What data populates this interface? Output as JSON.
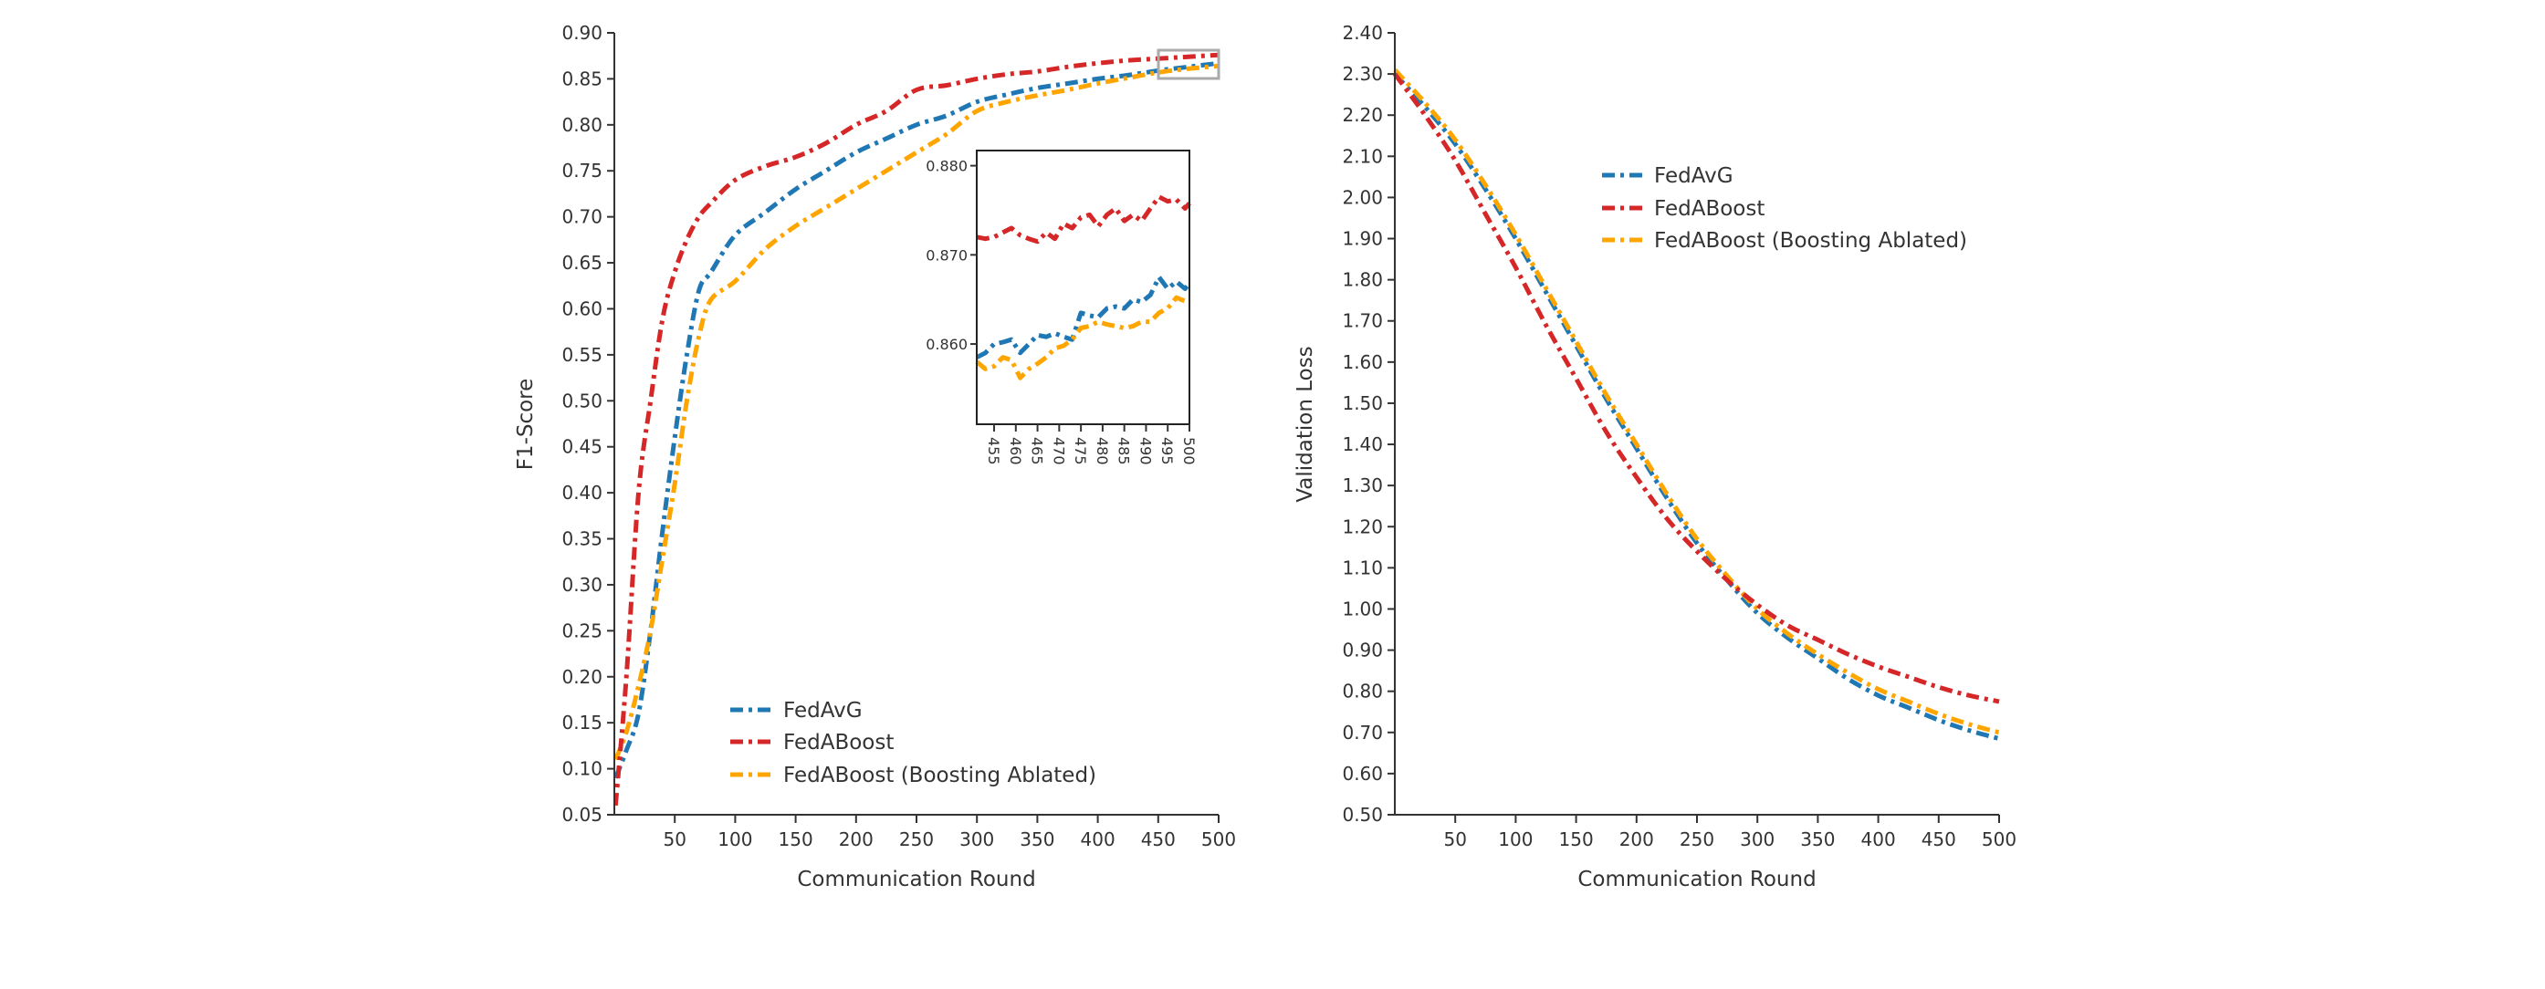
{
  "chart_data": [
    {
      "type": "line",
      "title": "",
      "xlabel": "Communication Round",
      "ylabel": "F1-Score",
      "xlim": [
        0,
        500
      ],
      "ylim": [
        0.05,
        0.9
      ],
      "x_ticks": [
        50,
        100,
        150,
        200,
        250,
        300,
        350,
        400,
        450,
        500
      ],
      "y_ticks": [
        "0.05",
        "0.10",
        "0.15",
        "0.20",
        "0.25",
        "0.30",
        "0.35",
        "0.40",
        "0.45",
        "0.50",
        "0.55",
        "0.60",
        "0.65",
        "0.70",
        "0.75",
        "0.80",
        "0.85",
        "0.90"
      ],
      "grid": false,
      "legend_position": "lower-center",
      "x": [
        1,
        10,
        20,
        30,
        40,
        50,
        60,
        70,
        80,
        100,
        125,
        150,
        175,
        200,
        225,
        250,
        275,
        300,
        325,
        350,
        375,
        400,
        425,
        450,
        475,
        500
      ],
      "series": [
        {
          "name": "FedAvG",
          "color": "#1f77b4",
          "values": [
            0.09,
            0.12,
            0.16,
            0.25,
            0.36,
            0.46,
            0.55,
            0.62,
            0.64,
            0.68,
            0.705,
            0.73,
            0.75,
            0.77,
            0.785,
            0.8,
            0.81,
            0.825,
            0.833,
            0.84,
            0.845,
            0.85,
            0.854,
            0.859,
            0.863,
            0.867
          ]
        },
        {
          "name": "FedABoost",
          "color": "#d62728",
          "values": [
            0.06,
            0.2,
            0.4,
            0.5,
            0.59,
            0.64,
            0.675,
            0.7,
            0.715,
            0.74,
            0.755,
            0.765,
            0.78,
            0.8,
            0.815,
            0.838,
            0.843,
            0.85,
            0.855,
            0.858,
            0.863,
            0.867,
            0.87,
            0.872,
            0.874,
            0.876
          ]
        },
        {
          "name": "FedABoost (Boosting Ablated)",
          "color": "#ffa500",
          "values": [
            0.11,
            0.14,
            0.19,
            0.25,
            0.33,
            0.41,
            0.5,
            0.57,
            0.61,
            0.63,
            0.665,
            0.69,
            0.71,
            0.73,
            0.75,
            0.77,
            0.79,
            0.815,
            0.825,
            0.832,
            0.838,
            0.845,
            0.851,
            0.857,
            0.861,
            0.864
          ]
        }
      ],
      "inset": {
        "xlim": [
          451,
          500
        ],
        "ylim": [
          0.851,
          0.8817
        ],
        "x_ticks": [
          "455",
          "460",
          "465",
          "470",
          "475",
          "480",
          "485",
          "490",
          "495",
          "500"
        ],
        "y_ticks": [
          "0.860",
          "0.870",
          "0.880"
        ],
        "x": [
          451,
          453,
          455,
          457,
          459,
          461,
          463,
          465,
          467,
          469,
          471,
          473,
          475,
          477,
          479,
          481,
          483,
          485,
          487,
          489,
          491,
          493,
          495,
          497,
          499,
          500
        ],
        "series": [
          {
            "name": "FedAvG",
            "color": "#1f77b4",
            "values": [
              0.8585,
              0.859,
              0.86,
              0.8602,
              0.8605,
              0.859,
              0.86,
              0.861,
              0.8608,
              0.8612,
              0.8608,
              0.8605,
              0.8635,
              0.8632,
              0.863,
              0.864,
              0.8642,
              0.864,
              0.865,
              0.8647,
              0.8655,
              0.8675,
              0.8662,
              0.867,
              0.8662,
              0.8668
            ]
          },
          {
            "name": "FedABoost",
            "color": "#d62728",
            "values": [
              0.872,
              0.8718,
              0.872,
              0.8725,
              0.873,
              0.8722,
              0.8718,
              0.8715,
              0.8725,
              0.8718,
              0.8735,
              0.873,
              0.8742,
              0.8745,
              0.8732,
              0.8745,
              0.8752,
              0.8738,
              0.8745,
              0.8738,
              0.8752,
              0.8765,
              0.876,
              0.8762,
              0.8752,
              0.8758
            ]
          },
          {
            "name": "FedABoost (Boosting Ablated)",
            "color": "#ffa500",
            "values": [
              0.858,
              0.8572,
              0.8575,
              0.8585,
              0.8582,
              0.8562,
              0.8572,
              0.8578,
              0.8585,
              0.8595,
              0.8598,
              0.8605,
              0.8618,
              0.862,
              0.8625,
              0.8622,
              0.862,
              0.8618,
              0.862,
              0.8625,
              0.8625,
              0.8635,
              0.864,
              0.8652,
              0.8648,
              0.865
            ]
          }
        ]
      }
    },
    {
      "type": "line",
      "title": "",
      "xlabel": "Communication Round",
      "ylabel": "Validation Loss",
      "xlim": [
        0,
        500
      ],
      "ylim": [
        0.5,
        2.4
      ],
      "x_ticks": [
        50,
        100,
        150,
        200,
        250,
        300,
        350,
        400,
        450,
        500
      ],
      "y_ticks": [
        "0.50",
        "0.60",
        "0.70",
        "0.80",
        "0.90",
        "1.00",
        "1.10",
        "1.20",
        "1.30",
        "1.40",
        "1.50",
        "1.60",
        "1.70",
        "1.80",
        "1.90",
        "2.00",
        "2.10",
        "2.20",
        "2.30",
        "2.40"
      ],
      "grid": false,
      "legend_position": "upper-center",
      "x": [
        0,
        25,
        50,
        75,
        100,
        125,
        150,
        175,
        200,
        225,
        250,
        275,
        300,
        325,
        350,
        375,
        400,
        425,
        450,
        475,
        500
      ],
      "series": [
        {
          "name": "FedAvG",
          "color": "#1f77b4",
          "values": [
            2.3,
            2.22,
            2.13,
            2.02,
            1.9,
            1.77,
            1.64,
            1.51,
            1.39,
            1.27,
            1.16,
            1.07,
            0.99,
            0.93,
            0.88,
            0.83,
            0.79,
            0.76,
            0.73,
            0.705,
            0.685
          ]
        },
        {
          "name": "FedABoost",
          "color": "#d62728",
          "values": [
            2.3,
            2.2,
            2.09,
            1.96,
            1.83,
            1.69,
            1.56,
            1.43,
            1.32,
            1.22,
            1.14,
            1.07,
            1.01,
            0.96,
            0.925,
            0.89,
            0.86,
            0.835,
            0.81,
            0.79,
            0.775
          ]
        },
        {
          "name": "FedABoost (Boosting Ablated)",
          "color": "#ffa500",
          "values": [
            2.31,
            2.23,
            2.14,
            2.03,
            1.91,
            1.78,
            1.65,
            1.52,
            1.4,
            1.28,
            1.17,
            1.08,
            1.0,
            0.94,
            0.89,
            0.845,
            0.805,
            0.775,
            0.745,
            0.72,
            0.7
          ]
        }
      ]
    }
  ]
}
